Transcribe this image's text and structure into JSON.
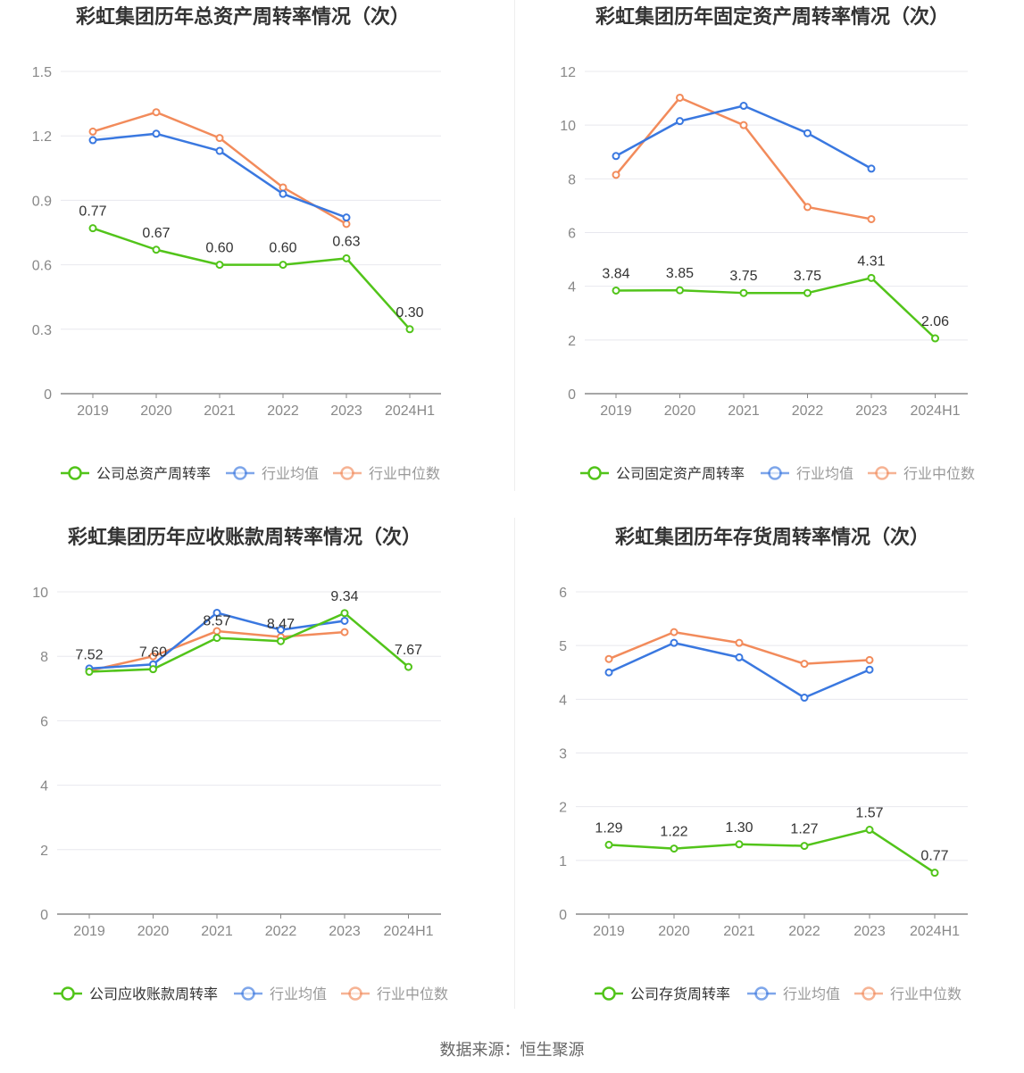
{
  "source": "数据来源：恒生聚源",
  "colors": {
    "company": "#52c41a",
    "avg": "#3a78e0",
    "median": "#f28b5b",
    "grid": "#e8e8ee",
    "axis": "#888888",
    "label": "#333333",
    "tick": "#888888"
  },
  "chart_data": [
    {
      "type": "line",
      "title": "彩虹集团历年总资产周转率情况（次）",
      "categories": [
        "2019",
        "2020",
        "2021",
        "2022",
        "2023",
        "2024H1"
      ],
      "ylim": [
        0,
        1.5
      ],
      "yticks": [
        "0",
        "0.3",
        "0.6",
        "0.9",
        "1.2",
        "1.5"
      ],
      "series": [
        {
          "name": "公司总资产周转率",
          "role": "company",
          "values": [
            0.77,
            0.67,
            0.6,
            0.6,
            0.63,
            0.3
          ],
          "labels": [
            "0.77",
            "0.67",
            "0.60",
            "0.60",
            "0.63",
            "0.30"
          ]
        },
        {
          "name": "行业均值",
          "role": "avg",
          "values": [
            1.18,
            1.21,
            1.13,
            0.93,
            0.82,
            null
          ]
        },
        {
          "name": "行业中位数",
          "role": "median",
          "values": [
            1.22,
            1.31,
            1.19,
            0.96,
            0.79,
            null
          ]
        }
      ]
    },
    {
      "type": "line",
      "title": "彩虹集团历年固定资产周转率情况（次）",
      "categories": [
        "2019",
        "2020",
        "2021",
        "2022",
        "2023",
        "2024H1"
      ],
      "ylim": [
        0,
        12
      ],
      "yticks": [
        "0",
        "2",
        "4",
        "6",
        "8",
        "10",
        "12"
      ],
      "series": [
        {
          "name": "公司固定资产周转率",
          "role": "company",
          "values": [
            3.84,
            3.85,
            3.75,
            3.75,
            4.31,
            2.06
          ],
          "labels": [
            "3.84",
            "3.85",
            "3.75",
            "3.75",
            "4.31",
            "2.06"
          ]
        },
        {
          "name": "行业均值",
          "role": "avg",
          "values": [
            8.85,
            10.15,
            10.72,
            9.7,
            8.38,
            null
          ]
        },
        {
          "name": "行业中位数",
          "role": "median",
          "values": [
            8.15,
            11.02,
            10.0,
            6.95,
            6.5,
            null
          ]
        }
      ]
    },
    {
      "type": "line",
      "title": "彩虹集团历年应收账款周转率情况（次）",
      "categories": [
        "2019",
        "2020",
        "2021",
        "2022",
        "2023",
        "2024H1"
      ],
      "ylim": [
        0,
        10
      ],
      "yticks": [
        "0",
        "2",
        "4",
        "6",
        "8",
        "10"
      ],
      "series": [
        {
          "name": "公司应收账款周转率",
          "role": "company",
          "values": [
            7.52,
            7.6,
            8.57,
            8.47,
            9.34,
            7.67
          ],
          "labels": [
            "7.52",
            "7.60",
            "8.57",
            "8.47",
            "9.34",
            "7.67"
          ]
        },
        {
          "name": "行业均值",
          "role": "avg",
          "values": [
            7.62,
            7.75,
            9.35,
            8.82,
            9.1,
            null
          ]
        },
        {
          "name": "行业中位数",
          "role": "median",
          "values": [
            7.55,
            8.0,
            8.78,
            8.6,
            8.75,
            null
          ]
        }
      ]
    },
    {
      "type": "line",
      "title": "彩虹集团历年存货周转率情况（次）",
      "categories": [
        "2019",
        "2020",
        "2021",
        "2022",
        "2023",
        "2024H1"
      ],
      "ylim": [
        0,
        6
      ],
      "yticks": [
        "0",
        "1",
        "2",
        "3",
        "4",
        "5",
        "6"
      ],
      "series": [
        {
          "name": "公司存货周转率",
          "role": "company",
          "values": [
            1.29,
            1.22,
            1.3,
            1.27,
            1.57,
            0.77
          ],
          "labels": [
            "1.29",
            "1.22",
            "1.30",
            "1.27",
            "1.57",
            "0.77"
          ]
        },
        {
          "name": "行业均值",
          "role": "avg",
          "values": [
            4.5,
            5.05,
            4.78,
            4.03,
            4.55,
            null
          ]
        },
        {
          "name": "行业中位数",
          "role": "median",
          "values": [
            4.75,
            5.25,
            5.05,
            4.66,
            4.73,
            null
          ]
        }
      ]
    }
  ]
}
